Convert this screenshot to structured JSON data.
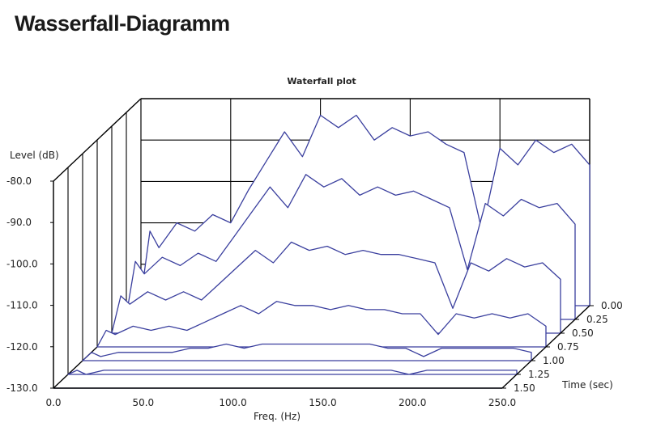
{
  "header": {
    "title": "Wasserfall-Diagramm"
  },
  "chart_data": {
    "type": "area",
    "title": "Waterfall plot",
    "xlabel": "Freq. (Hz)",
    "ylabel": "Level (dB)",
    "zlabel": "Time (sec)",
    "xlim": [
      0,
      250
    ],
    "ylim": [
      -130,
      -80
    ],
    "zlim": [
      0,
      1.5
    ],
    "x_ticks": [
      "0.0",
      "50.0",
      "100.0",
      "150.0",
      "200.0",
      "250.0"
    ],
    "y_ticks": [
      "-80.0",
      "-90.0",
      "-100.0",
      "-110.0",
      "-120.0",
      "-130.0"
    ],
    "z_ticks": [
      "0.00",
      "0.25",
      "0.50",
      "0.75",
      "1.00",
      "1.25",
      "1.50"
    ],
    "line_color": "#3a3f9e",
    "grid": true,
    "series": [
      {
        "time": 0.0,
        "x": [
          0,
          5,
          10,
          20,
          30,
          40,
          50,
          60,
          70,
          80,
          90,
          100,
          110,
          120,
          130,
          140,
          150,
          160,
          170,
          180,
          190,
          200,
          210,
          220,
          230,
          240,
          250
        ],
        "values": [
          -128,
          -112,
          -116,
          -110,
          -112,
          -108,
          -110,
          -102,
          -95,
          -88,
          -94,
          -84,
          -87,
          -84,
          -90,
          -87,
          -89,
          -88,
          -91,
          -93,
          -112,
          -92,
          -96,
          -90,
          -93,
          -91,
          -96
        ]
      },
      {
        "time": 0.25,
        "x": [
          0,
          5,
          10,
          20,
          30,
          40,
          50,
          60,
          70,
          80,
          90,
          100,
          110,
          120,
          130,
          140,
          150,
          160,
          170,
          180,
          190,
          200,
          210,
          220,
          230,
          240,
          250
        ],
        "values": [
          -129,
          -116,
          -119,
          -115,
          -117,
          -114,
          -116,
          -110,
          -104,
          -98,
          -103,
          -95,
          -98,
          -96,
          -100,
          -98,
          -100,
          -99,
          -101,
          -103,
          -118,
          -102,
          -105,
          -101,
          -103,
          -102,
          -107
        ]
      },
      {
        "time": 0.5,
        "x": [
          0,
          5,
          10,
          20,
          30,
          40,
          50,
          60,
          70,
          80,
          90,
          100,
          110,
          120,
          130,
          140,
          150,
          160,
          170,
          180,
          190,
          200,
          210,
          220,
          230,
          240,
          250
        ],
        "values": [
          -130,
          -121,
          -123,
          -120,
          -122,
          -120,
          -122,
          -118,
          -114,
          -110,
          -113,
          -108,
          -110,
          -109,
          -111,
          -110,
          -111,
          -111,
          -112,
          -113,
          -124,
          -113,
          -115,
          -112,
          -114,
          -113,
          -117
        ]
      },
      {
        "time": 0.75,
        "x": [
          0,
          5,
          10,
          20,
          30,
          40,
          50,
          60,
          70,
          80,
          90,
          100,
          110,
          120,
          130,
          140,
          150,
          160,
          170,
          180,
          190,
          200,
          210,
          220,
          230,
          240,
          250
        ],
        "values": [
          -130,
          -126,
          -127,
          -125,
          -126,
          -125,
          -126,
          -124,
          -122,
          -120,
          -122,
          -119,
          -120,
          -120,
          -121,
          -120,
          -121,
          -121,
          -122,
          -122,
          -127,
          -122,
          -123,
          -122,
          -123,
          -122,
          -125
        ]
      },
      {
        "time": 1.0,
        "x": [
          0,
          5,
          10,
          20,
          30,
          40,
          50,
          60,
          70,
          80,
          90,
          100,
          110,
          120,
          130,
          140,
          150,
          160,
          170,
          180,
          190,
          200,
          210,
          220,
          230,
          240,
          250
        ],
        "values": [
          -130,
          -128,
          -129,
          -128,
          -128,
          -128,
          -128,
          -127,
          -127,
          -126,
          -127,
          -126,
          -126,
          -126,
          -126,
          -126,
          -126,
          -126,
          -127,
          -127,
          -129,
          -127,
          -127,
          -127,
          -127,
          -127,
          -128
        ]
      },
      {
        "time": 1.25,
        "x": [
          0,
          5,
          10,
          20,
          30,
          40,
          50,
          60,
          70,
          80,
          90,
          100,
          110,
          120,
          130,
          140,
          150,
          160,
          170,
          180,
          190,
          200,
          210,
          220,
          230,
          240,
          250
        ],
        "values": [
          -130,
          -129,
          -130,
          -129,
          -129,
          -129,
          -129,
          -129,
          -129,
          -129,
          -129,
          -129,
          -129,
          -129,
          -129,
          -129,
          -129,
          -129,
          -129,
          -129,
          -130,
          -129,
          -129,
          -129,
          -129,
          -129,
          -129
        ]
      },
      {
        "time": 1.5,
        "x": [
          0,
          5,
          10,
          20,
          30,
          40,
          50,
          60,
          70,
          80,
          90,
          100,
          110,
          120,
          130,
          140,
          150,
          160,
          170,
          180,
          190,
          200,
          210,
          220,
          230,
          240,
          250
        ],
        "values": [
          -130,
          -130,
          -130,
          -130,
          -130,
          -130,
          -130,
          -130,
          -130,
          -130,
          -130,
          -130,
          -130,
          -130,
          -130,
          -130,
          -130,
          -130,
          -130,
          -130,
          -130,
          -130,
          -130,
          -130,
          -130,
          -130,
          -130
        ]
      }
    ]
  }
}
